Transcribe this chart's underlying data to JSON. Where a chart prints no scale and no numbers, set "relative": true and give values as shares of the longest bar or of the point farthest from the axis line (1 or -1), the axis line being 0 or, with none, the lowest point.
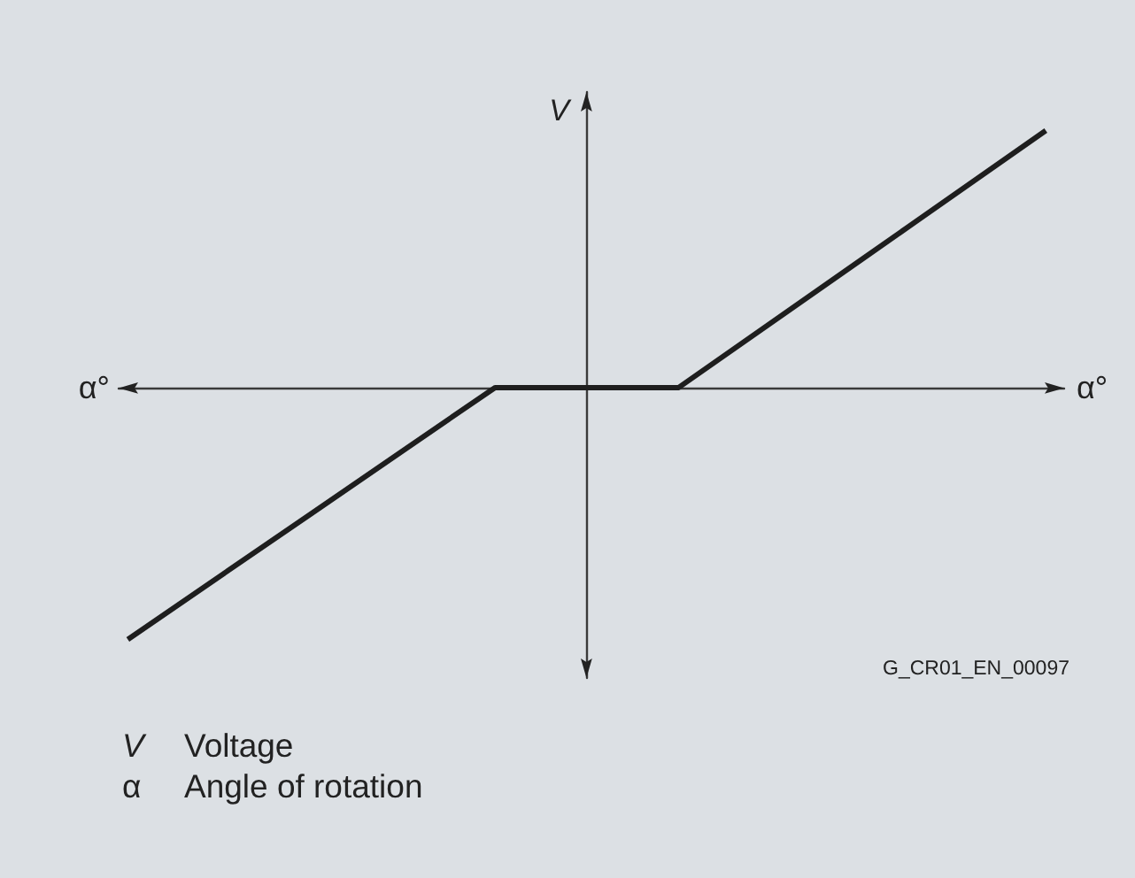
{
  "chart_data": {
    "type": "line",
    "relative": true,
    "xlabel": "α°",
    "ylabel": "V",
    "categories": [
      null,
      null,
      null,
      null,
      null,
      null
    ],
    "values": [
      -0.98,
      -0.49,
      0,
      0,
      0.5,
      1
    ],
    "color": "#1e1e1e",
    "annotations": [
      "G_CR01_EN_00097",
      "V Voltage",
      "α Angle of rotation"
    ]
  }
}
